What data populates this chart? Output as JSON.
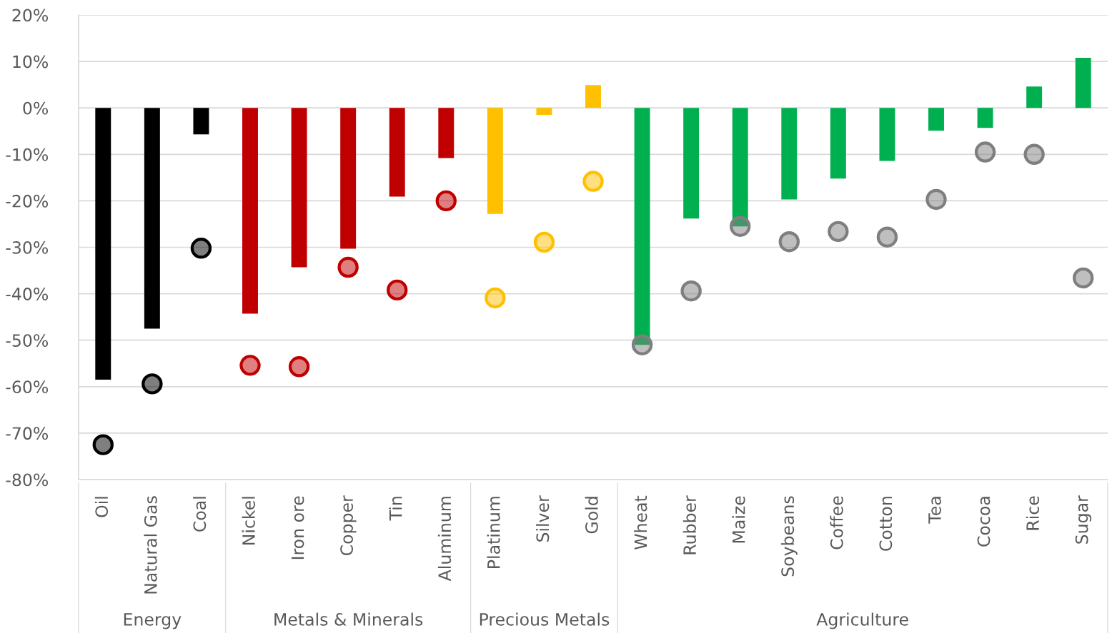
{
  "chart_data": {
    "type": "bar",
    "categories": [
      "Oil",
      "Natural Gas",
      "Coal",
      "Nickel",
      "Iron ore",
      "Copper",
      "Tin",
      "Aluminum",
      "Platinum",
      "Silver",
      "Gold",
      "Wheat",
      "Rubber",
      "Maize",
      "Soybeans",
      "Coffee",
      "Cotton",
      "Tea",
      "Cocoa",
      "Rice",
      "Sugar"
    ],
    "series": [
      {
        "colors": [
          "#000000",
          "#000000",
          "#000000",
          "#c00000",
          "#c00000",
          "#c00000",
          "#c00000",
          "#c00000",
          "#ffc000",
          "#ffc000",
          "#ffc000",
          "#00b050",
          "#00b050",
          "#00b050",
          "#00b050",
          "#00b050",
          "#00b050",
          "#00b050",
          "#00b050",
          "#00b050",
          "#00b050"
        ],
        "values": [
          -58.5,
          -47.5,
          -5.7,
          -44.3,
          -34.3,
          -30.3,
          -19.1,
          -10.8,
          -22.8,
          -1.5,
          4.9,
          -51,
          -23.8,
          -25.5,
          -19.7,
          -15.2,
          -11.4,
          -4.9,
          -4.3,
          4.6,
          10.8
        ]
      },
      {
        "type": "scatter",
        "colors": [
          "#000000",
          "#000000",
          "#000000",
          "#c00000",
          "#c00000",
          "#c00000",
          "#c00000",
          "#c00000",
          "#ffc000",
          "#ffc000",
          "#ffc000",
          "#7f7f7f",
          "#7f7f7f",
          "#7f7f7f",
          "#7f7f7f",
          "#7f7f7f",
          "#7f7f7f",
          "#7f7f7f",
          "#7f7f7f",
          "#7f7f7f",
          "#7f7f7f"
        ],
        "values": [
          -72.5,
          -59.4,
          -30.2,
          -55.4,
          -55.7,
          -34.3,
          -39.2,
          -20,
          -40.9,
          -28.9,
          -15.8,
          -51,
          -39.4,
          -25.5,
          -28.8,
          -26.6,
          -27.8,
          -19.7,
          -9.5,
          -10,
          -36.6
        ]
      }
    ],
    "ylim": [
      -80,
      20
    ],
    "yticks": [
      {
        "value": -80,
        "label": "-80%"
      },
      {
        "value": -70,
        "label": "-70%"
      },
      {
        "value": -60,
        "label": "-60%"
      },
      {
        "value": -50,
        "label": "-50%"
      },
      {
        "value": -40,
        "label": "-40%"
      },
      {
        "value": -30,
        "label": "-30%"
      },
      {
        "value": -20,
        "label": "-20%"
      },
      {
        "value": -10,
        "label": "-10%"
      },
      {
        "value": 0,
        "label": "0%"
      },
      {
        "value": 10,
        "label": "10%"
      },
      {
        "value": 20,
        "label": "20%"
      }
    ],
    "grid": "y",
    "marker": "circle",
    "legend": false,
    "annotations": [
      "Energy",
      "Metals & Minerals",
      "Precious Metals",
      "Agriculture"
    ]
  }
}
